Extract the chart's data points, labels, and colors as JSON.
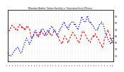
{
  "title": "Milwaukee Weather  Outdoor Humidity vs. Temperature Every 5 Minutes",
  "line1_color": "#dd0000",
  "line2_color": "#0000dd",
  "background_color": "#ffffff",
  "grid_color": "#bbbbbb",
  "ylim": [
    20,
    100
  ],
  "n_points": 200,
  "seed": 7,
  "temp_points": [
    72,
    70,
    68,
    72,
    75,
    74,
    73,
    71,
    70,
    68,
    72,
    74,
    76,
    75,
    73,
    71,
    70,
    72,
    74,
    73,
    71,
    68,
    60,
    55,
    58,
    62,
    65,
    63,
    60,
    58,
    62,
    65,
    67,
    65,
    62,
    60,
    63,
    66,
    68,
    65,
    62,
    60,
    62,
    65,
    67,
    65,
    62,
    60,
    55,
    52,
    50,
    48,
    52,
    56,
    58,
    55,
    52,
    50,
    55,
    58,
    62,
    65,
    63,
    60,
    58,
    55,
    52,
    50,
    55,
    60,
    65,
    68,
    65,
    62,
    58,
    55,
    52,
    50,
    52,
    55,
    58,
    60,
    62,
    60,
    58,
    55,
    52,
    48,
    45,
    42,
    48,
    55,
    60,
    65,
    68,
    65,
    60,
    55,
    50,
    48
  ],
  "hum_points": [
    35,
    33,
    30,
    28,
    30,
    33,
    35,
    38,
    40,
    42,
    40,
    38,
    35,
    33,
    38,
    43,
    48,
    52,
    55,
    53,
    50,
    48,
    52,
    56,
    60,
    65,
    68,
    65,
    62,
    60,
    63,
    66,
    68,
    70,
    68,
    65,
    62,
    60,
    65,
    68,
    72,
    75,
    73,
    70,
    68,
    65,
    62,
    60,
    65,
    68,
    72,
    75,
    78,
    80,
    78,
    75,
    72,
    70,
    75,
    78,
    80,
    82,
    80,
    78,
    75,
    72,
    70,
    75,
    80,
    85,
    88,
    85,
    82,
    80,
    85,
    88,
    85,
    82,
    80,
    78,
    75,
    72,
    70,
    68,
    70,
    72,
    75,
    78,
    80,
    78,
    75,
    70,
    65,
    60,
    55,
    52,
    50,
    48,
    52,
    55
  ],
  "y2ticks": [
    30,
    40,
    50,
    60,
    70,
    80,
    90
  ],
  "n_xticks": 40
}
